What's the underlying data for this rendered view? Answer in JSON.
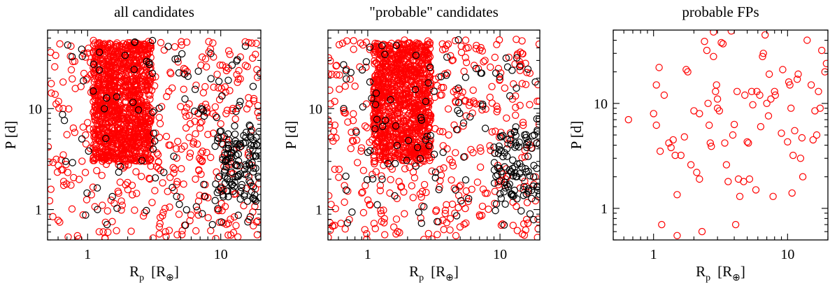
{
  "chart_data": [
    {
      "type": "scatter",
      "title": "all candidates",
      "xlabel": "R",
      "xlabel_sub": "p",
      "xlabel_unit": "[R",
      "xlabel_unit_sub": "⊕",
      "xlabel_unit_close": "]",
      "ylabel": "P  [d]",
      "xscale": "log",
      "yscale": "log",
      "xlim": [
        0.5,
        20
      ],
      "ylim": [
        0.5,
        60
      ],
      "xticks": [
        1,
        10
      ],
      "xticklabels": [
        "1",
        "10"
      ],
      "yticks": [
        1,
        10
      ],
      "yticklabels": [
        "1",
        "10"
      ],
      "marker": "open-circle",
      "colors": {
        "red": "#ff0000",
        "black": "#000000"
      },
      "point_seed": 1,
      "series": [
        {
          "color": "#ff0000",
          "count": 1500,
          "x_range": [
            0.5,
            20
          ],
          "y_range": [
            0.5,
            50
          ],
          "dense_core": {
            "x": [
              1.1,
              3.0
            ],
            "y": [
              3,
              45
            ]
          }
        },
        {
          "color": "#000000",
          "count": 220,
          "x_range": [
            0.6,
            20
          ],
          "y_range": [
            0.7,
            50
          ],
          "cluster": {
            "x": [
              9,
              20
            ],
            "y": [
              1.2,
              6
            ]
          }
        }
      ]
    },
    {
      "type": "scatter",
      "title": "\"probable\" candidates",
      "xlabel": "R",
      "xlabel_sub": "p",
      "xlabel_unit": "[R",
      "xlabel_unit_sub": "⊕",
      "xlabel_unit_close": "]",
      "ylabel": "P  [d]",
      "xscale": "log",
      "yscale": "log",
      "xlim": [
        0.5,
        20
      ],
      "ylim": [
        0.5,
        60
      ],
      "xticks": [
        1,
        10
      ],
      "xticklabels": [
        "1",
        "10"
      ],
      "yticks": [
        1,
        10
      ],
      "yticklabels": [
        "1",
        "10"
      ],
      "marker": "open-circle",
      "colors": {
        "red": "#ff0000",
        "black": "#000000"
      },
      "point_seed": 2,
      "series": [
        {
          "color": "#ff0000",
          "count": 1400,
          "x_range": [
            0.5,
            20
          ],
          "y_range": [
            0.5,
            50
          ],
          "dense_core": {
            "x": [
              1.1,
              3.0
            ],
            "y": [
              3,
              45
            ]
          }
        },
        {
          "color": "#000000",
          "count": 210,
          "x_range": [
            0.6,
            20
          ],
          "y_range": [
            0.7,
            50
          ],
          "cluster": {
            "x": [
              9,
              20
            ],
            "y": [
              1.2,
              6
            ]
          }
        }
      ]
    },
    {
      "type": "scatter",
      "title": "probable FPs",
      "xlabel": "R",
      "xlabel_sub": "p",
      "xlabel_unit": "[R",
      "xlabel_unit_sub": "⊕",
      "xlabel_unit_close": "]",
      "ylabel": "P  [d]",
      "xscale": "log",
      "yscale": "log",
      "xlim": [
        0.5,
        20
      ],
      "ylim": [
        0.5,
        50
      ],
      "xticks": [
        1,
        10
      ],
      "xticklabels": [
        "1",
        "10"
      ],
      "yticks": [
        1,
        10
      ],
      "yticklabels": [
        "1",
        "10"
      ],
      "marker": "open-circle",
      "colors": {
        "red": "#ff0000"
      },
      "series": [
        {
          "color": "#ff0000",
          "points": [
            [
              0.65,
              7.0
            ],
            [
              1.0,
              8.0
            ],
            [
              1.05,
              6.2
            ],
            [
              1.1,
              22
            ],
            [
              1.05,
              15
            ],
            [
              1.12,
              3.5
            ],
            [
              1.15,
              0.7
            ],
            [
              1.2,
              12
            ],
            [
              1.3,
              4.2
            ],
            [
              1.35,
              3.8
            ],
            [
              1.4,
              4.5
            ],
            [
              1.45,
              3.2
            ],
            [
              1.5,
              1.35
            ],
            [
              1.5,
              0.55
            ],
            [
              1.6,
              3.2
            ],
            [
              1.7,
              4.8
            ],
            [
              1.75,
              21
            ],
            [
              1.8,
              20
            ],
            [
              1.9,
              2.6
            ],
            [
              2.0,
              8.5
            ],
            [
              2.1,
              2.2
            ],
            [
              2.2,
              8.0
            ],
            [
              2.2,
              1.9
            ],
            [
              2.3,
              0.6
            ],
            [
              2.4,
              39
            ],
            [
              2.5,
              32
            ],
            [
              2.55,
              10
            ],
            [
              2.6,
              6.2
            ],
            [
              2.65,
              4.2
            ],
            [
              2.7,
              3.9
            ],
            [
              2.8,
              48
            ],
            [
              2.8,
              28
            ],
            [
              2.9,
              13
            ],
            [
              2.95,
              15
            ],
            [
              3.0,
              11
            ],
            [
              3.0,
              9
            ],
            [
              3.1,
              8.5
            ],
            [
              3.2,
              38
            ],
            [
              3.3,
              37
            ],
            [
              3.4,
              4.2
            ],
            [
              3.5,
              2.6
            ],
            [
              3.6,
              1.8
            ],
            [
              3.8,
              49
            ],
            [
              3.9,
              5.0
            ],
            [
              4.0,
              6.3
            ],
            [
              4.1,
              0.7
            ],
            [
              4.2,
              13
            ],
            [
              4.3,
              1.9
            ],
            [
              4.4,
              1.3
            ],
            [
              4.7,
              1.8
            ],
            [
              4.8,
              12
            ],
            [
              5.0,
              4.3
            ],
            [
              5.1,
              4.2
            ],
            [
              5.2,
              1.9
            ],
            [
              5.4,
              13
            ],
            [
              5.5,
              9.7
            ],
            [
              5.8,
              1.5
            ],
            [
              5.9,
              13
            ],
            [
              6.2,
              12
            ],
            [
              6.3,
              6.0
            ],
            [
              6.5,
              28
            ],
            [
              6.6,
              30
            ],
            [
              6.8,
              45
            ],
            [
              7.0,
              10
            ],
            [
              7.2,
              7.6
            ],
            [
              7.3,
              19
            ],
            [
              7.5,
              11
            ],
            [
              7.8,
              1.3
            ],
            [
              8.0,
              13
            ],
            [
              8.1,
              12
            ],
            [
              9.0,
              5.2
            ],
            [
              9.2,
              21
            ],
            [
              10.0,
              4.3
            ],
            [
              10.2,
              16
            ],
            [
              10.4,
              15
            ],
            [
              10.6,
              9.0
            ],
            [
              10.8,
              1.4
            ],
            [
              11.0,
              3.2
            ],
            [
              11.3,
              5.5
            ],
            [
              11.8,
              17
            ],
            [
              12.0,
              19
            ],
            [
              12.5,
              3.0
            ],
            [
              12.8,
              4.7
            ],
            [
              13.0,
              2.0
            ],
            [
              14.0,
              40
            ],
            [
              15.0,
              15
            ],
            [
              15.5,
              4.5
            ],
            [
              16.0,
              8.5
            ],
            [
              16.5,
              5.0
            ],
            [
              17.0,
              13
            ],
            [
              17.5,
              9.0
            ],
            [
              18.0,
              32
            ],
            [
              19.0,
              20
            ],
            [
              19.5,
              24
            ]
          ]
        }
      ]
    }
  ]
}
